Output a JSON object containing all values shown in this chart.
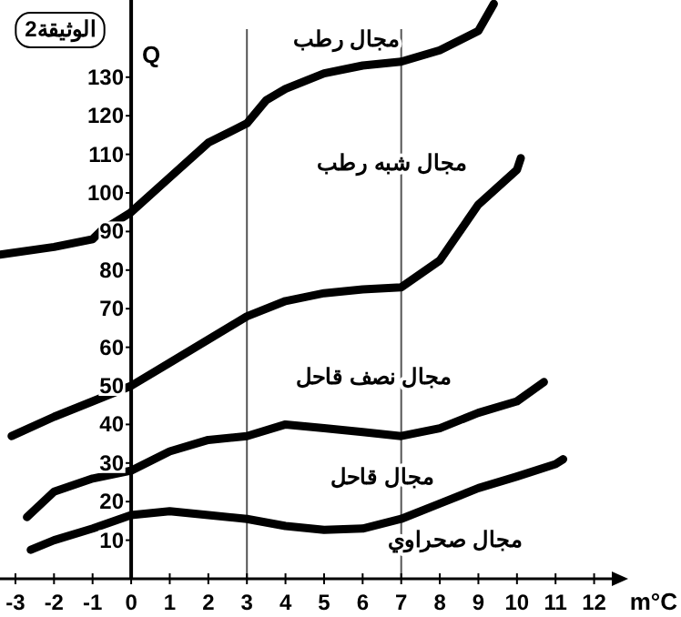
{
  "chart_data": {
    "type": "line",
    "title": "الوثيقة2",
    "xlabel": "m°C",
    "ylabel": "Q",
    "xlim": [
      -3.4,
      12.6
    ],
    "ylim": [
      0,
      150
    ],
    "xticks": [
      -3,
      -2,
      -1,
      0,
      1,
      2,
      3,
      4,
      5,
      6,
      7,
      8,
      9,
      10,
      11,
      12
    ],
    "yticks": [
      10,
      20,
      30,
      40,
      50,
      60,
      70,
      80,
      90,
      100,
      110,
      120,
      130
    ],
    "ref_lines": [
      {
        "axis": "x",
        "value": 3,
        "color": "#555555"
      },
      {
        "axis": "x",
        "value": 7,
        "color": "#555555"
      }
    ],
    "series": [
      {
        "color": "#000000",
        "x": [
          -3.4,
          -2,
          -1,
          -0.8,
          0,
          1,
          2,
          3,
          3.5,
          4,
          5,
          6,
          7,
          8,
          9,
          9.4
        ],
        "values": [
          84,
          86,
          88,
          90,
          95,
          104,
          113,
          118,
          124,
          127,
          131,
          133,
          134,
          137,
          142,
          149
        ]
      },
      {
        "color": "#000000",
        "x": [
          -3.1,
          -2,
          -1,
          0,
          1,
          2,
          3,
          4,
          5,
          6,
          7,
          8,
          9,
          10,
          10.1
        ],
        "values": [
          37,
          42,
          46,
          50,
          56,
          62,
          68,
          72,
          74,
          75,
          75.5,
          82.5,
          97,
          106,
          109
        ]
      },
      {
        "color": "#000000",
        "x": [
          -2.7,
          -2,
          -1,
          0,
          1,
          2,
          3,
          4,
          5,
          6,
          7,
          8,
          9,
          10,
          10.7
        ],
        "values": [
          16,
          22.6,
          26,
          28,
          33,
          36,
          37,
          40,
          39,
          38,
          37,
          39,
          43,
          46,
          51
        ]
      },
      {
        "color": "#000000",
        "x": [
          -2.6,
          -2,
          -1,
          0,
          1,
          2,
          3,
          4,
          5,
          6,
          7,
          8,
          9,
          10,
          11,
          11.2
        ],
        "values": [
          7.5,
          10,
          13,
          16.5,
          17.5,
          16.5,
          15.5,
          13.7,
          12.7,
          13,
          15.5,
          19.5,
          23.5,
          26.5,
          29.7,
          31
        ]
      }
    ],
    "annotations": [
      "مجال رطب",
      "مجال شبه رطب",
      "مجال نصف قاحل",
      "مجال قاحل",
      "مجال صحراوي"
    ]
  }
}
